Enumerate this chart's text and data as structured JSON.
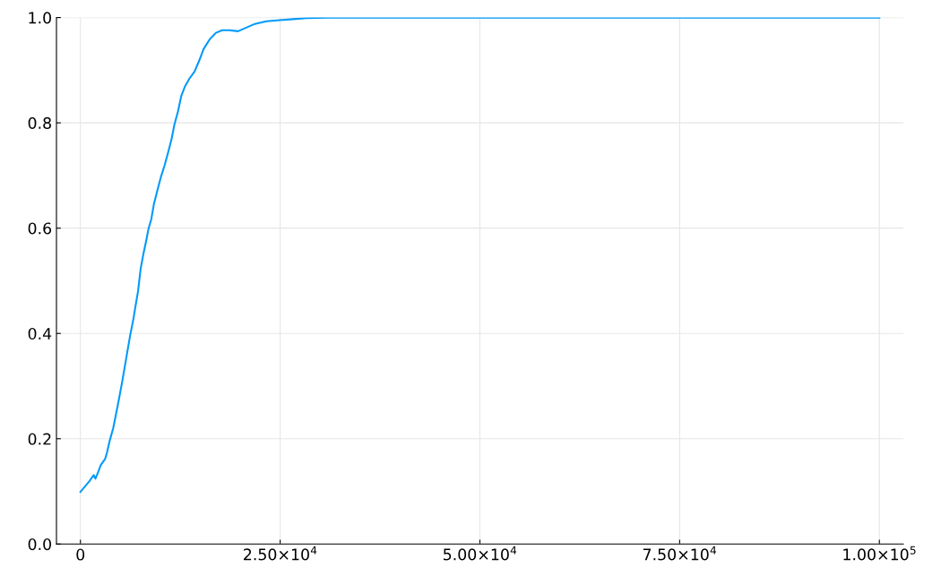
{
  "chart_data": {
    "type": "line",
    "x": [
      0,
      1100,
      1660,
      1880,
      2200,
      2550,
      3100,
      3330,
      3660,
      4100,
      4550,
      4770,
      5210,
      5540,
      5880,
      6210,
      6650,
      6870,
      7210,
      7540,
      7870,
      8200,
      8540,
      8870,
      9200,
      9650,
      10090,
      10530,
      10980,
      11420,
      11750,
      12200,
      12640,
      13080,
      13640,
      14300,
      14860,
      15410,
      16190,
      16960,
      17740,
      18630,
      19730,
      20620,
      21840,
      23280,
      24940,
      26610,
      28270,
      31040,
      100000
    ],
    "series": [
      {
        "color": "#009af9",
        "values": [
          0.099,
          0.119,
          0.131,
          0.124,
          0.136,
          0.15,
          0.162,
          0.174,
          0.196,
          0.22,
          0.254,
          0.271,
          0.307,
          0.336,
          0.366,
          0.395,
          0.429,
          0.45,
          0.48,
          0.523,
          0.55,
          0.574,
          0.6,
          0.617,
          0.646,
          0.673,
          0.698,
          0.719,
          0.744,
          0.77,
          0.796,
          0.821,
          0.852,
          0.869,
          0.884,
          0.898,
          0.918,
          0.94,
          0.959,
          0.971,
          0.976,
          0.976,
          0.974,
          0.98,
          0.988,
          0.993,
          0.995,
          0.997,
          0.999,
          1.0,
          1.0
        ]
      }
    ],
    "xlim": [
      -3000,
      103000
    ],
    "ylim": [
      0,
      1
    ],
    "xticks": [
      0,
      {
        "value": 25000,
        "label": "2.50×10$^{4}$"
      },
      {
        "value": 50000,
        "label": "5.00×10$^{4}$"
      },
      {
        "value": 75000,
        "label": "7.50×10$^{4}$"
      },
      {
        "value": 100000,
        "label": "1.00×10$^{5}$"
      }
    ],
    "yticks": [
      {
        "value": 0,
        "label": "0.0"
      },
      {
        "value": 0.2,
        "label": "0.2"
      },
      {
        "value": 0.4,
        "label": "0.4"
      },
      {
        "value": 0.6,
        "label": "0.6"
      },
      {
        "value": 0.8,
        "label": "0.8"
      },
      {
        "value": 1,
        "label": "1.0"
      }
    ],
    "grid": true,
    "legend": false,
    "line_style": "solid",
    "marker": "none"
  }
}
